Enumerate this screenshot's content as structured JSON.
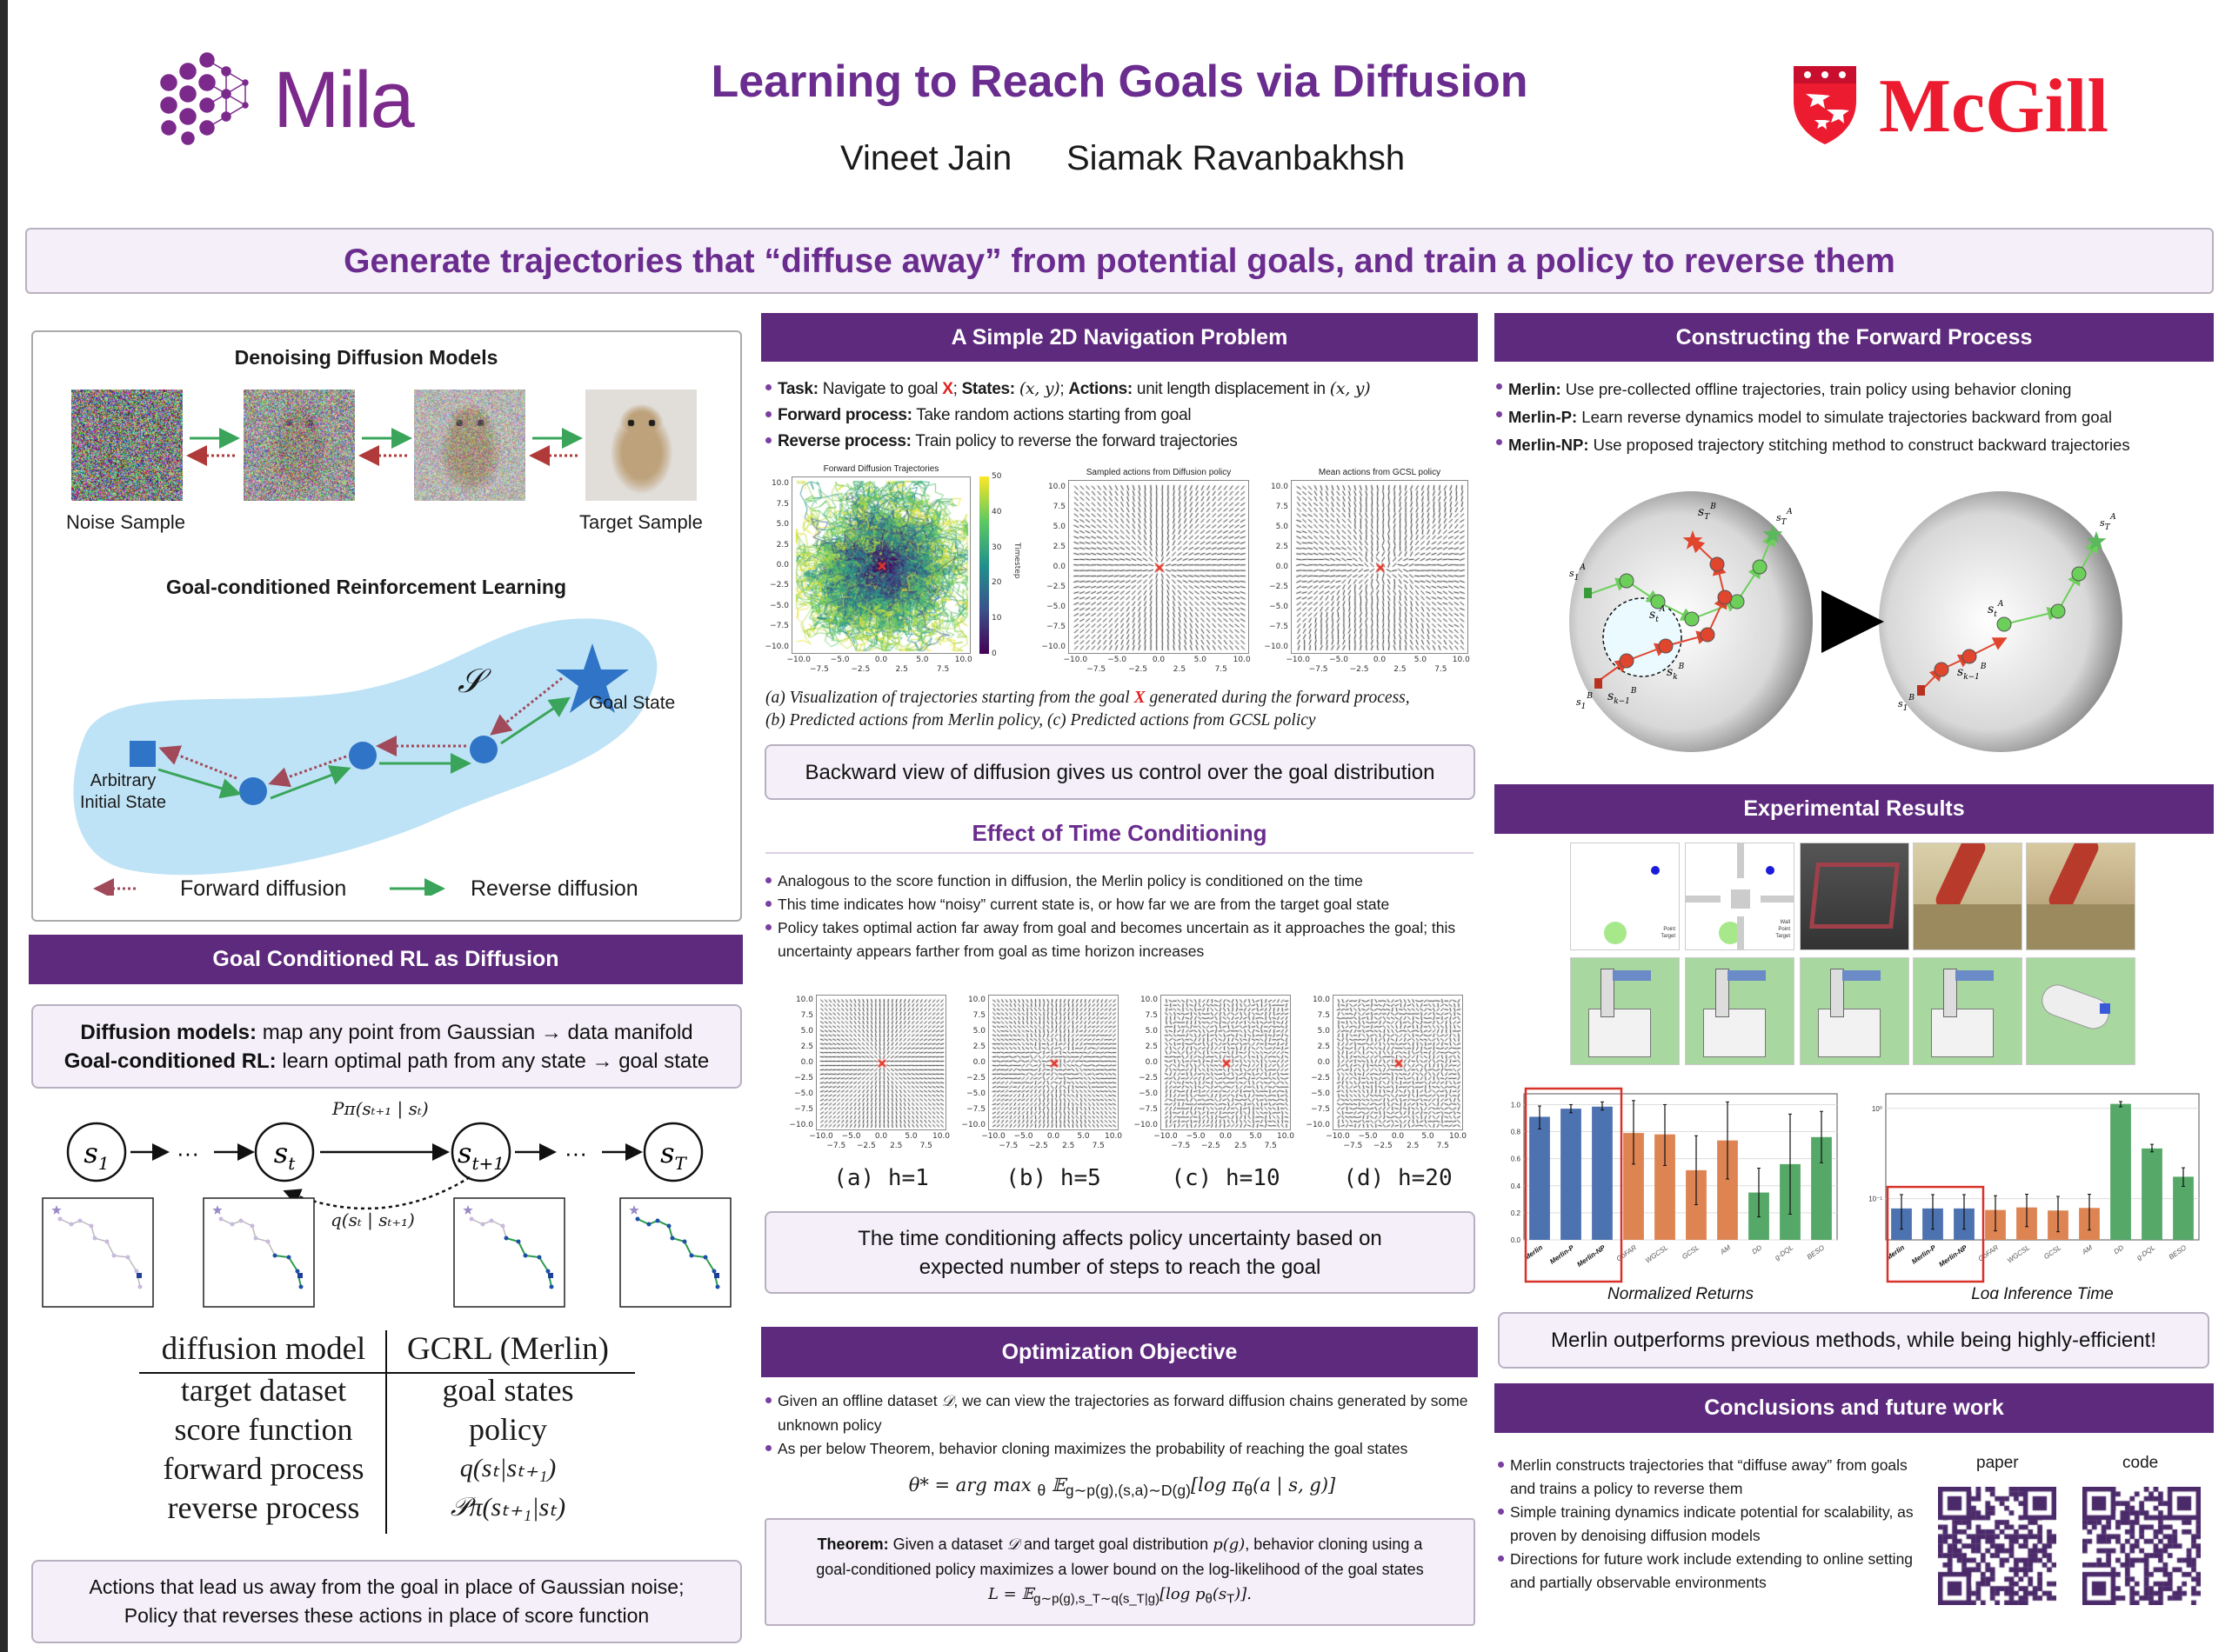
{
  "header": {
    "title": "Learning to Reach Goals via Diffusion",
    "authors": [
      "Vineet Jain",
      "Siamak Ravanbakhsh"
    ],
    "mila_logo": "Mila",
    "mcgill_logo": "McGill"
  },
  "banner": "Generate trajectories that “diffuse away” from potential goals, and train a policy to reverse them",
  "left": {
    "ddm": {
      "title": "Denoising Diffusion Models",
      "noise_label": "Noise Sample",
      "target_label": "Target Sample"
    },
    "gcrl": {
      "title": "Goal-conditioned Reinforcement Learning",
      "set_symbol": "𝒮",
      "goal_label": "Goal State",
      "initial_label_1": "Arbitrary",
      "initial_label_2": "Initial State",
      "legend_forward": "Forward diffusion",
      "legend_reverse": "Reverse diffusion"
    },
    "section_title": "Goal Conditioned RL as Diffusion",
    "summary": [
      [
        {
          "s": "bold",
          "v": "Diffusion models:"
        },
        {
          "v": " map any point from Gaussian → data manifold"
        }
      ],
      [
        {
          "s": "bold",
          "v": "Goal-conditioned RL:"
        },
        {
          "v": " learn optimal path from any state → goal state"
        }
      ]
    ],
    "chain": {
      "nodes": [
        {
          "b": "s",
          "sub": "1"
        },
        {
          "b": "s",
          "sub": "t"
        },
        {
          "b": "s",
          "sub": "t+1"
        },
        {
          "b": "s",
          "sub": "T"
        }
      ],
      "ellipsis": "···",
      "p_label": "Pπ(sₜ₊₁ | sₜ)",
      "q_label": "q(sₜ | sₜ₊₁)"
    },
    "table": {
      "headers": [
        "diffusion model",
        "GCRL (Merlin)"
      ],
      "rows": [
        [
          "target dataset",
          "goal states"
        ],
        [
          "score function",
          "policy"
        ],
        [
          "forward process",
          "q(sₜ|sₜ₊₁)"
        ],
        [
          "reverse process",
          "𝒫π(sₜ₊₁|sₜ)"
        ]
      ]
    },
    "note": [
      "Actions that lead us away from the goal in place of Gaussian noise;",
      "Policy that reverses these actions in place of score function"
    ]
  },
  "middle": {
    "nav": {
      "title": "A Simple 2D Navigation Problem",
      "bullets": [
        [
          {
            "s": "bold",
            "v": "Task:"
          },
          {
            "v": " Navigate to goal "
          },
          {
            "s": "red",
            "v": "X"
          },
          {
            "v": ";   "
          },
          {
            "s": "bold",
            "v": "States:"
          },
          {
            "v": " "
          },
          {
            "s": "math",
            "v": "(x, y)"
          },
          {
            "v": ";   "
          },
          {
            "s": "bold",
            "v": "Actions:"
          },
          {
            "v": " unit length displacement in "
          },
          {
            "s": "math",
            "v": "(x, y)"
          }
        ],
        [
          {
            "s": "bold",
            "v": "Forward process:"
          },
          {
            "v": " Take random actions starting from goal"
          }
        ],
        [
          {
            "s": "bold",
            "v": "Reverse process:"
          },
          {
            "v": " Train policy to reverse the forward trajectories"
          }
        ]
      ],
      "plot_titles": [
        "Forward Diffusion Trajectories",
        "Sampled actions from Diffusion policy",
        "Mean actions from GCSL policy"
      ],
      "colorbar_label": "Timestep",
      "colorbar_ticks": [
        "0",
        "10",
        "20",
        "30",
        "40",
        "50"
      ],
      "caption": [
        [
          {
            "v": "(a) Visualization of trajectories starting from the goal "
          },
          {
            "s": "red",
            "v": "X"
          },
          {
            "v": " generated during the forward process,"
          }
        ],
        [
          {
            "v": "(b) Predicted actions from Merlin policy, (c) Predicted actions from GCSL policy"
          }
        ]
      ],
      "highlight": "Backward view of diffusion gives us control over the goal distribution"
    },
    "field_ticks": [
      "−10.0",
      "−7.5",
      "−5.0",
      "−2.5",
      "0.0",
      "2.5",
      "5.0",
      "7.5",
      "10.0"
    ],
    "time": {
      "title": "Effect of Time Conditioning",
      "bullets": [
        [
          {
            "v": "Analogous to the score function in diffusion, the Merlin policy is conditioned on the time"
          }
        ],
        [
          {
            "v": "This time indicates how “noisy” current state is, or how far we are from the target goal state"
          }
        ],
        [
          {
            "v": "Policy takes optimal action far away from goal and becomes uncertain as it approaches the goal; this uncertainty appears farther from goal as time horizon increases"
          }
        ]
      ],
      "labels": [
        "(a) h=1",
        "(b) h=5",
        "(c) h=10",
        "(d) h=20"
      ],
      "highlight": [
        "The time conditioning affects policy uncertainty based on",
        "expected number of steps to reach the goal"
      ]
    },
    "opt": {
      "title": "Optimization Objective",
      "bullets": [
        [
          {
            "v": "Given an offline dataset "
          },
          {
            "s": "math",
            "v": "𝒟"
          },
          {
            "v": ", we can view the trajectories as forward diffusion chains generated by some unknown policy"
          }
        ],
        [
          {
            "v": "As per below Theorem, behavior cloning maximizes the probability of reaching the goal states"
          }
        ]
      ],
      "equation": [
        {
          "s": "math",
          "v": "θ* = arg max "
        },
        {
          "s": "sub",
          "v": "θ"
        },
        {
          "s": "math",
          "v": " 𝔼"
        },
        {
          "s": "sub",
          "v": "g∼p(g),(s,a)∼D(g)"
        },
        {
          "s": "math",
          "v": "[log π"
        },
        {
          "s": "sub",
          "v": "θ"
        },
        {
          "s": "math",
          "v": "(a | s, g)]"
        }
      ],
      "theorem": [
        [
          {
            "s": "bold",
            "v": "Theorem:"
          },
          {
            "v": " Given a dataset "
          },
          {
            "s": "math",
            "v": "𝒟"
          },
          {
            "v": " and target goal distribution "
          },
          {
            "s": "math",
            "v": "p(g)"
          },
          {
            "v": ", behavior cloning using a"
          }
        ],
        [
          {
            "v": "goal-conditioned policy maximizes a lower bound on the log-likelihood of the goal states"
          }
        ],
        [
          {
            "s": "math",
            "v": "L = 𝔼"
          },
          {
            "s": "sub",
            "v": "g∼p(g),s_T∼q(s_T|g)"
          },
          {
            "s": "math",
            "v": "[log p"
          },
          {
            "s": "sub",
            "v": "θ"
          },
          {
            "s": "math",
            "v": "(s"
          },
          {
            "s": "sub",
            "v": "T"
          },
          {
            "s": "math",
            "v": ")]."
          }
        ]
      ]
    }
  },
  "right": {
    "forward": {
      "title": "Constructing the Forward Process",
      "bullets": [
        [
          {
            "s": "bold",
            "v": "Merlin:"
          },
          {
            "v": " Use pre-collected offline trajectories, train policy using behavior cloning"
          }
        ],
        [
          {
            "s": "bold",
            "v": "Merlin-P:"
          },
          {
            "v": " Learn reverse dynamics model to simulate trajectories backward from goal"
          }
        ],
        [
          {
            "s": "bold",
            "v": "Merlin-NP:"
          },
          {
            "v": " Use proposed trajectory stitching method to construct backward trajectories"
          }
        ]
      ],
      "sphere_labels": {
        "sTB": [
          "s",
          "T",
          "B"
        ],
        "sTA": [
          "s",
          "T",
          "A"
        ],
        "s1A": [
          "s",
          "1",
          "A"
        ],
        "stA": [
          "s",
          "t",
          "A"
        ],
        "skB": [
          "s",
          "k",
          "B"
        ],
        "sk1B": [
          "s",
          "k−1",
          "B"
        ],
        "s1B": [
          "s",
          "1",
          "B"
        ]
      }
    },
    "results": {
      "title": "Experimental Results",
      "legend_a": [
        "Point",
        "Target"
      ],
      "legend_b": [
        "Wall",
        "Point",
        "Target"
      ],
      "highlight": "Merlin outperforms previous methods, while being highly-efficient!"
    },
    "conclusions": {
      "title": "Conclusions and future work",
      "bullets": [
        [
          {
            "v": "Merlin constructs trajectories that “diffuse away” from goals and trains a policy to reverse them"
          }
        ],
        [
          {
            "v": "Simple training dynamics indicate potential for scalability, as proven by denoising diffusion models"
          }
        ],
        [
          {
            "v": "Directions for future work include extending to online setting and partially observable environments"
          }
        ]
      ],
      "qr_labels": [
        "paper",
        "code"
      ]
    }
  },
  "chart_data": [
    {
      "type": "bar",
      "title": "Normalized Returns",
      "categories": [
        "Merlin",
        "Merlin-P",
        "Merlin-NP",
        "GoFAR",
        "WGCSL",
        "GCSL",
        "AM",
        "DD",
        "g-DQL",
        "BESO"
      ],
      "values": [
        0.91,
        0.97,
        0.985,
        0.79,
        0.78,
        0.515,
        0.735,
        0.35,
        0.56,
        0.76
      ],
      "error_low": [
        0.82,
        0.94,
        0.96,
        0.56,
        0.55,
        0.26,
        0.45,
        0.17,
        0.19,
        0.57
      ],
      "error_high": [
        0.99,
        1.0,
        1.02,
        1.03,
        1.0,
        0.77,
        1.02,
        0.53,
        0.93,
        0.95
      ],
      "colors": [
        "#4c72b0",
        "#4c72b0",
        "#4c72b0",
        "#dd8452",
        "#dd8452",
        "#dd8452",
        "#dd8452",
        "#55a868",
        "#55a868",
        "#55a868"
      ],
      "highlighted": [
        "Merlin",
        "Merlin-P",
        "Merlin-NP"
      ],
      "yscale": "linear",
      "ylim": [
        0,
        1.08
      ],
      "yticks": [
        "0.0",
        "0.2",
        "0.4",
        "0.6",
        "0.8",
        "1.0"
      ],
      "grid": true
    },
    {
      "type": "bar",
      "title": "Log Inference Time",
      "categories": [
        "Merlin",
        "Merlin-P",
        "Merlin-NP",
        "GoFAR",
        "WGCSL",
        "GCSL",
        "AM",
        "DD",
        "g-DQL",
        "BESO"
      ],
      "values": [
        0.078,
        0.078,
        0.078,
        0.075,
        0.08,
        0.074,
        0.079,
        1.12,
        0.36,
        0.175
      ],
      "error_low": [
        0.046,
        0.046,
        0.046,
        0.044,
        0.049,
        0.043,
        0.045,
        1.04,
        0.33,
        0.137
      ],
      "error_high": [
        0.111,
        0.111,
        0.111,
        0.108,
        0.112,
        0.106,
        0.112,
        1.19,
        0.4,
        0.22
      ],
      "colors": [
        "#4c72b0",
        "#4c72b0",
        "#4c72b0",
        "#dd8452",
        "#dd8452",
        "#dd8452",
        "#dd8452",
        "#55a868",
        "#55a868",
        "#55a868"
      ],
      "highlighted": [
        "Merlin",
        "Merlin-P",
        "Merlin-NP"
      ],
      "yscale": "log",
      "ylim": [
        0.035,
        1.45
      ],
      "yticks": [
        "10⁻¹",
        "10⁰"
      ],
      "ytick_values": [
        0.1,
        1
      ],
      "grid": true
    }
  ]
}
